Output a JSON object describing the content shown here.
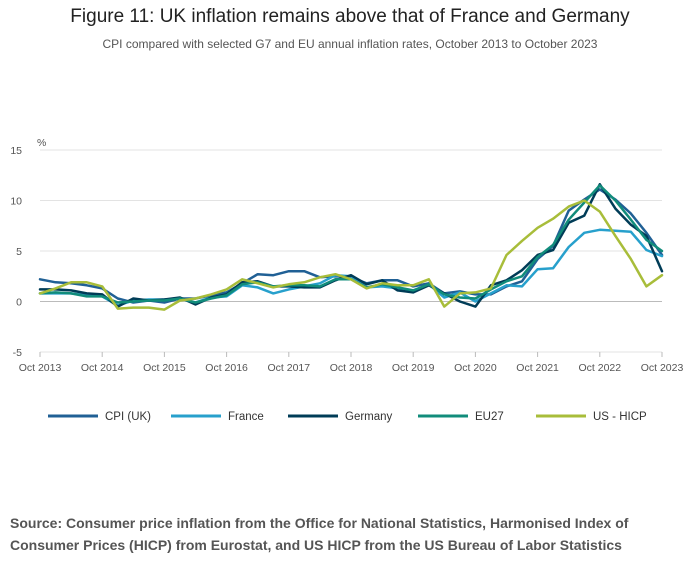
{
  "title": "Figure 11: UK inflation remains above that of France and Germany",
  "subtitle": "CPI compared with selected G7 and EU annual inflation rates, October 2013 to October 2023",
  "source": "Source: Consumer price inflation from the Office for National Statistics, Harmonised Index of Consumer Prices (HICP) from Eurostat, and US HICP from the US Bureau of Labor Statistics",
  "chart_data": {
    "type": "line",
    "ylabel": "%",
    "ylim": [
      -5,
      15
    ],
    "yticks": [
      -5,
      0,
      5,
      10,
      15
    ],
    "xlim": [
      "2013-10",
      "2023-10"
    ],
    "xticks": [
      {
        "label": "Oct 2013",
        "t": "2013-10"
      },
      {
        "label": "Oct 2014",
        "t": "2014-10"
      },
      {
        "label": "Oct 2015",
        "t": "2015-10"
      },
      {
        "label": "Oct 2016",
        "t": "2016-10"
      },
      {
        "label": "Oct 2017",
        "t": "2017-10"
      },
      {
        "label": "Oct 2018",
        "t": "2018-10"
      },
      {
        "label": "Oct 2019",
        "t": "2019-10"
      },
      {
        "label": "Oct 2020",
        "t": "2020-10"
      },
      {
        "label": "Oct 2021",
        "t": "2021-10"
      },
      {
        "label": "Oct 2022",
        "t": "2022-10"
      },
      {
        "label": "Oct 2023",
        "t": "2023-10"
      }
    ],
    "grid": true,
    "legend_position": "bottom",
    "series": [
      {
        "name": "CPI (UK)",
        "color": "#206095",
        "points": [
          [
            "2013-10",
            2.2
          ],
          [
            "2014-01",
            1.9
          ],
          [
            "2014-04",
            1.8
          ],
          [
            "2014-07",
            1.6
          ],
          [
            "2014-10",
            1.3
          ],
          [
            "2015-01",
            0.3
          ],
          [
            "2015-04",
            -0.1
          ],
          [
            "2015-07",
            0.1
          ],
          [
            "2015-10",
            -0.1
          ],
          [
            "2016-01",
            0.3
          ],
          [
            "2016-04",
            0.3
          ],
          [
            "2016-07",
            0.6
          ],
          [
            "2016-10",
            0.9
          ],
          [
            "2017-01",
            1.8
          ],
          [
            "2017-04",
            2.7
          ],
          [
            "2017-07",
            2.6
          ],
          [
            "2017-10",
            3.0
          ],
          [
            "2018-01",
            3.0
          ],
          [
            "2018-04",
            2.4
          ],
          [
            "2018-07",
            2.5
          ],
          [
            "2018-10",
            2.4
          ],
          [
            "2019-01",
            1.8
          ],
          [
            "2019-04",
            2.1
          ],
          [
            "2019-07",
            2.1
          ],
          [
            "2019-10",
            1.5
          ],
          [
            "2020-01",
            1.8
          ],
          [
            "2020-04",
            0.8
          ],
          [
            "2020-07",
            1.0
          ],
          [
            "2020-10",
            0.7
          ],
          [
            "2021-01",
            0.7
          ],
          [
            "2021-04",
            1.5
          ],
          [
            "2021-07",
            2.0
          ],
          [
            "2021-10",
            4.2
          ],
          [
            "2022-01",
            5.5
          ],
          [
            "2022-04",
            9.0
          ],
          [
            "2022-07",
            10.1
          ],
          [
            "2022-10",
            11.1
          ],
          [
            "2023-01",
            10.1
          ],
          [
            "2023-04",
            8.7
          ],
          [
            "2023-07",
            6.8
          ],
          [
            "2023-10",
            4.6
          ]
        ]
      },
      {
        "name": "France",
        "color": "#27a0cc",
        "points": [
          [
            "2013-10",
            0.8
          ],
          [
            "2014-01",
            0.8
          ],
          [
            "2014-04",
            0.8
          ],
          [
            "2014-07",
            0.6
          ],
          [
            "2014-10",
            0.5
          ],
          [
            "2015-01",
            -0.4
          ],
          [
            "2015-04",
            0.1
          ],
          [
            "2015-07",
            0.2
          ],
          [
            "2015-10",
            0.2
          ],
          [
            "2016-01",
            0.3
          ],
          [
            "2016-04",
            -0.1
          ],
          [
            "2016-07",
            0.4
          ],
          [
            "2016-10",
            0.5
          ],
          [
            "2017-01",
            1.6
          ],
          [
            "2017-04",
            1.4
          ],
          [
            "2017-07",
            0.8
          ],
          [
            "2017-10",
            1.2
          ],
          [
            "2018-01",
            1.5
          ],
          [
            "2018-04",
            1.8
          ],
          [
            "2018-07",
            2.6
          ],
          [
            "2018-10",
            2.5
          ],
          [
            "2019-01",
            1.4
          ],
          [
            "2019-04",
            1.5
          ],
          [
            "2019-07",
            1.3
          ],
          [
            "2019-10",
            0.9
          ],
          [
            "2020-01",
            1.7
          ],
          [
            "2020-04",
            0.4
          ],
          [
            "2020-07",
            0.9
          ],
          [
            "2020-10",
            0.0
          ],
          [
            "2021-01",
            0.8
          ],
          [
            "2021-04",
            1.6
          ],
          [
            "2021-07",
            1.5
          ],
          [
            "2021-10",
            3.2
          ],
          [
            "2022-01",
            3.3
          ],
          [
            "2022-04",
            5.4
          ],
          [
            "2022-07",
            6.8
          ],
          [
            "2022-10",
            7.1
          ],
          [
            "2023-01",
            7.0
          ],
          [
            "2023-04",
            6.9
          ],
          [
            "2023-07",
            5.1
          ],
          [
            "2023-10",
            4.5
          ]
        ]
      },
      {
        "name": "Germany",
        "color": "#003c57",
        "points": [
          [
            "2013-10",
            1.2
          ],
          [
            "2014-01",
            1.2
          ],
          [
            "2014-04",
            1.1
          ],
          [
            "2014-07",
            0.8
          ],
          [
            "2014-10",
            0.7
          ],
          [
            "2015-01",
            -0.5
          ],
          [
            "2015-04",
            0.3
          ],
          [
            "2015-07",
            0.1
          ],
          [
            "2015-10",
            0.2
          ],
          [
            "2016-01",
            0.4
          ],
          [
            "2016-04",
            -0.3
          ],
          [
            "2016-07",
            0.4
          ],
          [
            "2016-10",
            0.7
          ],
          [
            "2017-01",
            1.9
          ],
          [
            "2017-04",
            2.0
          ],
          [
            "2017-07",
            1.5
          ],
          [
            "2017-10",
            1.5
          ],
          [
            "2018-01",
            1.4
          ],
          [
            "2018-04",
            1.4
          ],
          [
            "2018-07",
            2.1
          ],
          [
            "2018-10",
            2.6
          ],
          [
            "2019-01",
            1.7
          ],
          [
            "2019-04",
            2.1
          ],
          [
            "2019-07",
            1.1
          ],
          [
            "2019-10",
            0.9
          ],
          [
            "2020-01",
            1.6
          ],
          [
            "2020-04",
            0.8
          ],
          [
            "2020-07",
            0.0
          ],
          [
            "2020-10",
            -0.5
          ],
          [
            "2021-01",
            1.6
          ],
          [
            "2021-04",
            2.1
          ],
          [
            "2021-07",
            3.1
          ],
          [
            "2021-10",
            4.6
          ],
          [
            "2022-01",
            5.1
          ],
          [
            "2022-04",
            7.8
          ],
          [
            "2022-07",
            8.5
          ],
          [
            "2022-10",
            11.6
          ],
          [
            "2023-01",
            9.2
          ],
          [
            "2023-04",
            7.6
          ],
          [
            "2023-07",
            6.5
          ],
          [
            "2023-10",
            3.0
          ]
        ]
      },
      {
        "name": "EU27",
        "color": "#118c7b",
        "points": [
          [
            "2013-10",
            0.8
          ],
          [
            "2014-01",
            0.9
          ],
          [
            "2014-04",
            0.8
          ],
          [
            "2014-07",
            0.5
          ],
          [
            "2014-10",
            0.5
          ],
          [
            "2015-01",
            -0.1
          ],
          [
            "2015-04",
            0.0
          ],
          [
            "2015-07",
            0.1
          ],
          [
            "2015-10",
            0.1
          ],
          [
            "2016-01",
            0.3
          ],
          [
            "2016-04",
            -0.1
          ],
          [
            "2016-07",
            0.3
          ],
          [
            "2016-10",
            0.6
          ],
          [
            "2017-01",
            1.7
          ],
          [
            "2017-04",
            1.9
          ],
          [
            "2017-07",
            1.5
          ],
          [
            "2017-10",
            1.6
          ],
          [
            "2018-01",
            1.6
          ],
          [
            "2018-04",
            1.5
          ],
          [
            "2018-07",
            2.2
          ],
          [
            "2018-10",
            2.2
          ],
          [
            "2019-01",
            1.4
          ],
          [
            "2019-04",
            1.7
          ],
          [
            "2019-07",
            1.4
          ],
          [
            "2019-10",
            1.1
          ],
          [
            "2020-01",
            1.7
          ],
          [
            "2020-04",
            0.7
          ],
          [
            "2020-07",
            0.4
          ],
          [
            "2020-10",
            0.3
          ],
          [
            "2021-01",
            1.2
          ],
          [
            "2021-04",
            2.0
          ],
          [
            "2021-07",
            2.5
          ],
          [
            "2021-10",
            4.4
          ],
          [
            "2022-01",
            5.6
          ],
          [
            "2022-04",
            8.1
          ],
          [
            "2022-07",
            9.8
          ],
          [
            "2022-10",
            11.5
          ],
          [
            "2023-01",
            10.0
          ],
          [
            "2023-04",
            8.1
          ],
          [
            "2023-07",
            6.1
          ],
          [
            "2023-10",
            5.0
          ]
        ]
      },
      {
        "name": "US - HICP",
        "color": "#a8bd3a",
        "points": [
          [
            "2013-10",
            0.8
          ],
          [
            "2014-01",
            1.3
          ],
          [
            "2014-04",
            1.9
          ],
          [
            "2014-07",
            1.9
          ],
          [
            "2014-10",
            1.5
          ],
          [
            "2015-01",
            -0.7
          ],
          [
            "2015-04",
            -0.6
          ],
          [
            "2015-07",
            -0.6
          ],
          [
            "2015-10",
            -0.8
          ],
          [
            "2016-01",
            0.1
          ],
          [
            "2016-04",
            0.3
          ],
          [
            "2016-07",
            0.7
          ],
          [
            "2016-10",
            1.2
          ],
          [
            "2017-01",
            2.2
          ],
          [
            "2017-04",
            1.8
          ],
          [
            "2017-07",
            1.4
          ],
          [
            "2017-10",
            1.7
          ],
          [
            "2018-01",
            1.9
          ],
          [
            "2018-04",
            2.4
          ],
          [
            "2018-07",
            2.7
          ],
          [
            "2018-10",
            2.2
          ],
          [
            "2019-01",
            1.3
          ],
          [
            "2019-04",
            1.8
          ],
          [
            "2019-07",
            1.6
          ],
          [
            "2019-10",
            1.6
          ],
          [
            "2020-01",
            2.2
          ],
          [
            "2020-04",
            -0.5
          ],
          [
            "2020-07",
            0.8
          ],
          [
            "2020-10",
            0.9
          ],
          [
            "2021-01",
            1.3
          ],
          [
            "2021-04",
            4.6
          ],
          [
            "2021-07",
            6.0
          ],
          [
            "2021-10",
            7.3
          ],
          [
            "2022-01",
            8.2
          ],
          [
            "2022-04",
            9.4
          ],
          [
            "2022-07",
            10.0
          ],
          [
            "2022-10",
            8.9
          ],
          [
            "2023-01",
            6.5
          ],
          [
            "2023-04",
            4.2
          ],
          [
            "2023-07",
            1.5
          ],
          [
            "2023-10",
            2.6
          ]
        ]
      }
    ]
  }
}
